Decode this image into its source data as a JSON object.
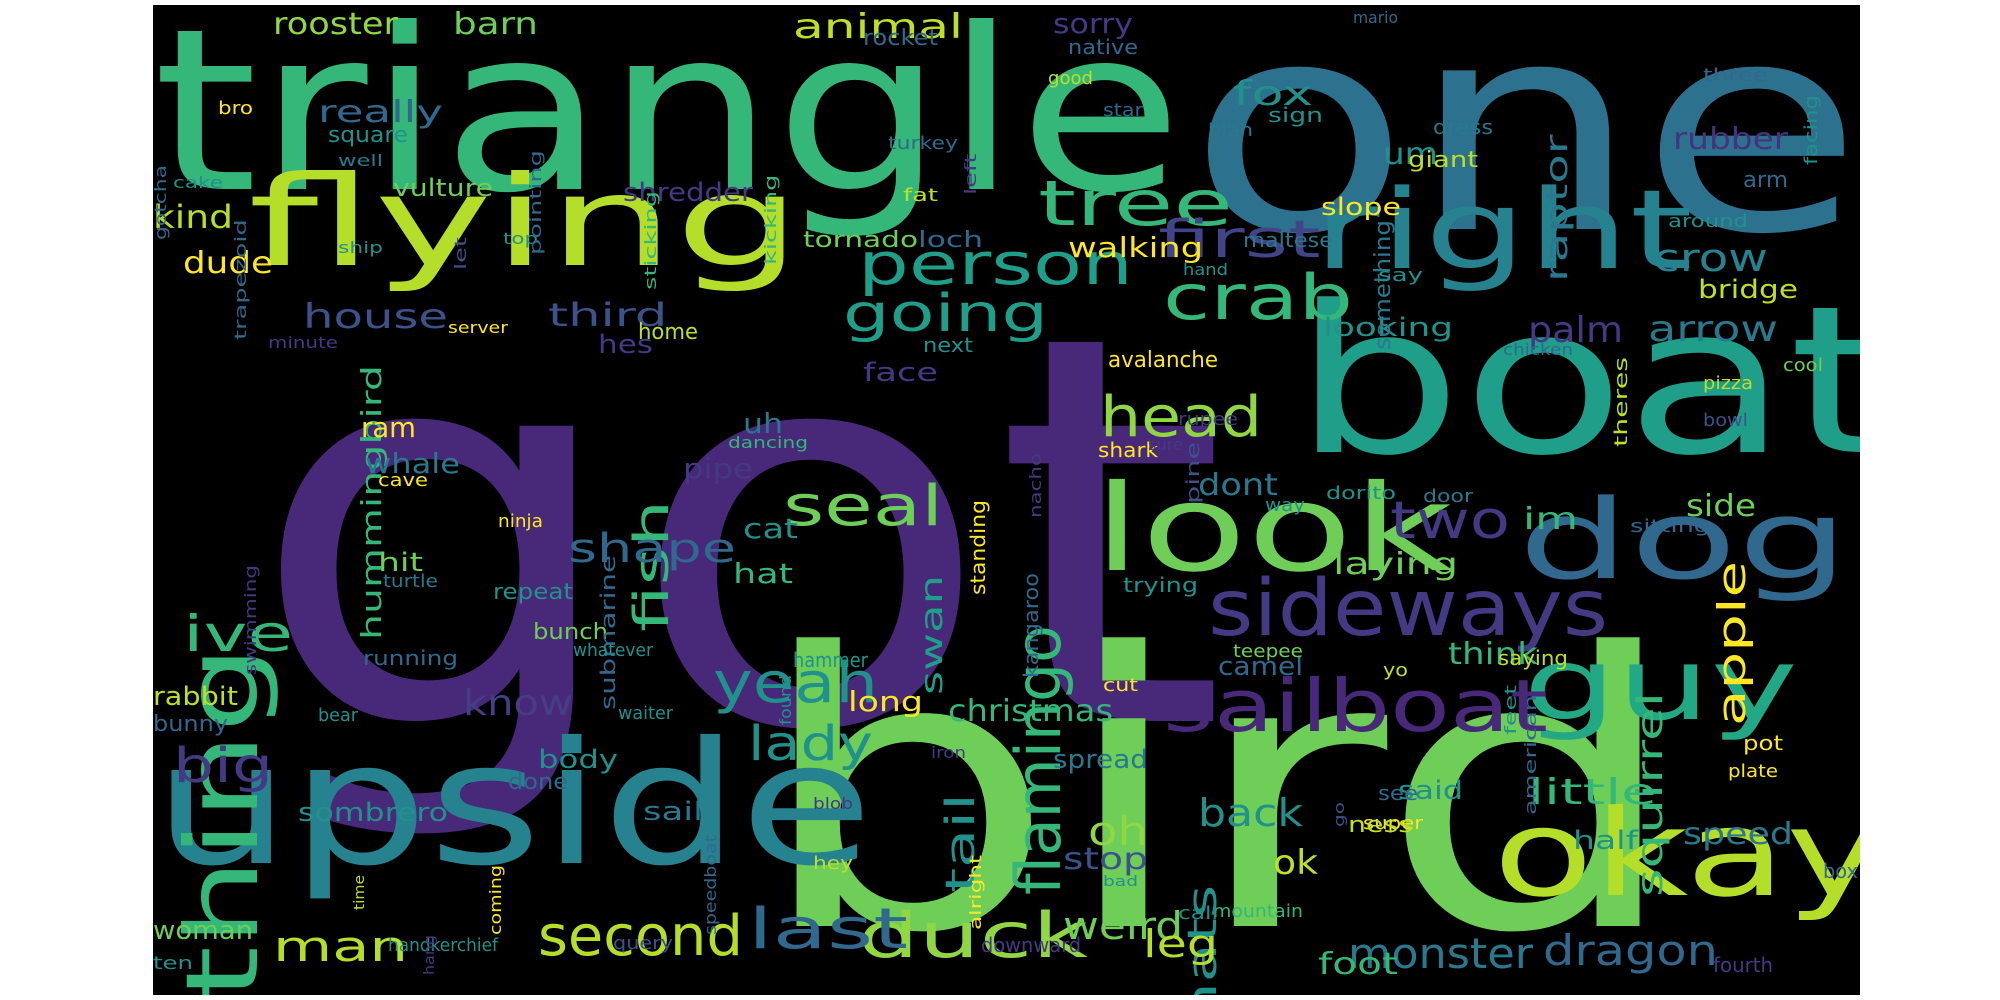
{
  "words": [
    {
      "t": "got",
      "c": "#482878"
    },
    {
      "t": "bird",
      "c": "#6ece58"
    },
    {
      "t": "one",
      "c": "#2c728e"
    },
    {
      "t": "triangle",
      "c": "#35b779"
    },
    {
      "t": "boat",
      "c": "#1f9e89"
    },
    {
      "t": "upside",
      "c": "#26828e"
    },
    {
      "t": "flying",
      "c": "#b5de2b"
    },
    {
      "t": "dog",
      "c": "#31688e"
    },
    {
      "t": "right",
      "c": "#26828e"
    },
    {
      "t": "look",
      "c": "#6ece58"
    },
    {
      "t": "okay",
      "c": "#b5de2b"
    },
    {
      "t": "guy",
      "c": "#22a884"
    },
    {
      "t": "thing",
      "c": "#35b779"
    },
    {
      "t": "sideways",
      "c": "#443983"
    },
    {
      "t": "sailboat",
      "c": "#482878"
    },
    {
      "t": "tree",
      "c": "#35b779"
    },
    {
      "t": "person",
      "c": "#1f9e89"
    },
    {
      "t": "crab",
      "c": "#35b779"
    },
    {
      "t": "flamingo",
      "c": "#35b779"
    },
    {
      "t": "duck",
      "c": "#90d743"
    },
    {
      "t": "head",
      "c": "#90d743"
    },
    {
      "t": "seal",
      "c": "#6ece58"
    },
    {
      "t": "yeah",
      "c": "#21918c"
    },
    {
      "t": "second",
      "c": "#b5de2b"
    },
    {
      "t": "last",
      "c": "#31688e"
    },
    {
      "t": "going",
      "c": "#1f9e89"
    },
    {
      "t": "two",
      "c": "#443983"
    },
    {
      "t": "first",
      "c": "#414487"
    },
    {
      "t": "fish",
      "c": "#35b779"
    },
    {
      "t": "shape",
      "c": "#31688e"
    },
    {
      "t": "ive",
      "c": "#35b779"
    },
    {
      "t": "lady",
      "c": "#21918c"
    },
    {
      "t": "big",
      "c": "#443983"
    },
    {
      "t": "man",
      "c": "#b5de2b"
    },
    {
      "t": "monster",
      "c": "#2a788e"
    },
    {
      "t": "dragon",
      "c": "#31688e"
    },
    {
      "t": "thats",
      "c": "#21918c"
    },
    {
      "t": "weird",
      "c": "#6ece58"
    },
    {
      "t": "tail",
      "c": "#21918c"
    },
    {
      "t": "back",
      "c": "#21918c"
    },
    {
      "t": "squirrel",
      "c": "#35b779"
    },
    {
      "t": "apple",
      "c": "#fde725"
    },
    {
      "t": "crow",
      "c": "#26828e"
    },
    {
      "t": "arrow",
      "c": "#2a788e"
    },
    {
      "t": "palm",
      "c": "#443983"
    },
    {
      "t": "little",
      "c": "#35b779"
    },
    {
      "t": "oh",
      "c": "#90d743"
    },
    {
      "t": "leg",
      "c": "#b5de2b"
    },
    {
      "t": "animal",
      "c": "#bddf26"
    },
    {
      "t": "house",
      "c": "#3b528b"
    },
    {
      "t": "third",
      "c": "#3b528b"
    },
    {
      "t": "know",
      "c": "#433e85"
    },
    {
      "t": "hummingbird",
      "c": "#35b779"
    },
    {
      "t": "ok",
      "c": "#bddf26"
    },
    {
      "t": "raptor",
      "c": "#2a788e"
    },
    {
      "t": "rubber",
      "c": "#46327e"
    },
    {
      "t": "fox",
      "c": "#21918c"
    },
    {
      "t": "um",
      "c": "#21918c"
    },
    {
      "t": "im",
      "c": "#35b779"
    },
    {
      "t": "laying",
      "c": "#6ece58"
    },
    {
      "t": "think",
      "c": "#35b779"
    },
    {
      "t": "speed",
      "c": "#2a788e"
    },
    {
      "t": "side",
      "c": "#6ece58"
    },
    {
      "t": "dont",
      "c": "#2a788e"
    },
    {
      "t": "stop",
      "c": "#3b528b"
    },
    {
      "t": "foot",
      "c": "#35b779"
    },
    {
      "t": "christmas",
      "c": "#35b779"
    },
    {
      "t": "swan",
      "c": "#1f9e89"
    },
    {
      "t": "kind",
      "c": "#b5de2b"
    },
    {
      "t": "rooster",
      "c": "#90d743"
    },
    {
      "t": "barn",
      "c": "#6ece58"
    },
    {
      "t": "sorry",
      "c": "#443983"
    },
    {
      "t": "really",
      "c": "#31688e"
    },
    {
      "t": "dude",
      "c": "#fde725"
    },
    {
      "t": "walking",
      "c": "#fde725"
    },
    {
      "t": "ram",
      "c": "#fde725"
    },
    {
      "t": "whale",
      "c": "#2a788e"
    },
    {
      "t": "uh",
      "c": "#2a788e"
    },
    {
      "t": "pipe",
      "c": "#443983"
    },
    {
      "t": "cat",
      "c": "#21918c"
    },
    {
      "t": "hat",
      "c": "#35b779"
    },
    {
      "t": "hit",
      "c": "#6ece58"
    },
    {
      "t": "hes",
      "c": "#443983"
    },
    {
      "t": "face",
      "c": "#443983"
    },
    {
      "t": "long",
      "c": "#fde725"
    },
    {
      "t": "sombrero",
      "c": "#21918c"
    },
    {
      "t": "body",
      "c": "#21918c"
    },
    {
      "t": "rabbit",
      "c": "#bddf26"
    },
    {
      "t": "said",
      "c": "#21918c"
    },
    {
      "t": "half",
      "c": "#21918c"
    },
    {
      "t": "woman",
      "c": "#6ece58"
    },
    {
      "t": "sail",
      "c": "#2a788e"
    },
    {
      "t": "spread",
      "c": "#2a788e"
    },
    {
      "t": "bridge",
      "c": "#bddf26"
    },
    {
      "t": "looking",
      "c": "#21918c"
    },
    {
      "t": "camel",
      "c": "#31688e"
    },
    {
      "t": "something",
      "c": "#2a788e"
    },
    {
      "t": "giant",
      "c": "#bddf26"
    },
    {
      "t": "shredder",
      "c": "#443983"
    },
    {
      "t": "vulture",
      "c": "#6ece58"
    },
    {
      "t": "square",
      "c": "#21918c"
    },
    {
      "t": "tornado",
      "c": "#6ece58"
    },
    {
      "t": "loch",
      "c": "#31688e"
    },
    {
      "t": "slope",
      "c": "#fde725"
    },
    {
      "t": "maltese",
      "c": "#2a788e"
    },
    {
      "t": "dress",
      "c": "#2a788e"
    },
    {
      "t": "sign",
      "c": "#21918c"
    },
    {
      "t": "arm",
      "c": "#31688e"
    },
    {
      "t": "avalanche",
      "c": "#fde725"
    },
    {
      "t": "home",
      "c": "#bddf26"
    },
    {
      "t": "next",
      "c": "#21918c"
    },
    {
      "t": "shark",
      "c": "#fde725"
    },
    {
      "t": "standing",
      "c": "#fde725"
    },
    {
      "t": "kangaroo",
      "c": "#31688e"
    },
    {
      "t": "trying",
      "c": "#21918c"
    },
    {
      "t": "repeat",
      "c": "#21918c"
    },
    {
      "t": "bunch",
      "c": "#6ece58"
    },
    {
      "t": "running",
      "c": "#31688e"
    },
    {
      "t": "hammer",
      "c": "#21918c"
    },
    {
      "t": "submarine",
      "c": "#31688e"
    },
    {
      "t": "cave",
      "c": "#fde725"
    },
    {
      "t": "turtle",
      "c": "#2a788e"
    },
    {
      "t": "ninja",
      "c": "#fde725"
    },
    {
      "t": "bunny",
      "c": "#31688e"
    },
    {
      "t": "bear",
      "c": "#21918c"
    },
    {
      "t": "done",
      "c": "#31688e"
    },
    {
      "t": "waiter",
      "c": "#21918c"
    },
    {
      "t": "whatever",
      "c": "#21918c"
    },
    {
      "t": "handkerchief",
      "c": "#21918c"
    },
    {
      "t": "query",
      "c": "#3b528b"
    },
    {
      "t": "downward",
      "c": "#443983"
    },
    {
      "t": "ten",
      "c": "#21918c"
    },
    {
      "t": "mountain",
      "c": "#35b779"
    },
    {
      "t": "call",
      "c": "#21918c"
    },
    {
      "t": "super",
      "c": "#fde725"
    },
    {
      "t": "ness",
      "c": "#bddf26"
    },
    {
      "t": "box",
      "c": "#31688e"
    },
    {
      "t": "fourth",
      "c": "#443983"
    },
    {
      "t": "pot",
      "c": "#fde725"
    },
    {
      "t": "plate",
      "c": "#fde725"
    },
    {
      "t": "saying",
      "c": "#bddf26"
    },
    {
      "t": "yo",
      "c": "#bddf26"
    },
    {
      "t": "see",
      "c": "#31688e"
    },
    {
      "t": "cut",
      "c": "#fde725"
    },
    {
      "t": "teepee",
      "c": "#6ece58"
    },
    {
      "t": "rocket",
      "c": "#31688e"
    },
    {
      "t": "native",
      "c": "#31688e"
    },
    {
      "t": "good",
      "c": "#bddf26"
    },
    {
      "t": "star",
      "c": "#31688e"
    },
    {
      "t": "blah",
      "c": "#2a788e"
    },
    {
      "t": "mario",
      "c": "#31688e"
    },
    {
      "t": "three",
      "c": "#31688e"
    },
    {
      "t": "facing",
      "c": "#21918c"
    },
    {
      "t": "around",
      "c": "#21918c"
    },
    {
      "t": "hand",
      "c": "#21918c"
    },
    {
      "t": "say",
      "c": "#21918c"
    },
    {
      "t": "chicken",
      "c": "#31688e"
    },
    {
      "t": "cool",
      "c": "#6ece58"
    },
    {
      "t": "pizza",
      "c": "#bddf26"
    },
    {
      "t": "bowl",
      "c": "#3b528b"
    },
    {
      "t": "theres",
      "c": "#bddf26"
    },
    {
      "t": "sitting",
      "c": "#31688e"
    },
    {
      "t": "door",
      "c": "#2a788e"
    },
    {
      "t": "dorito",
      "c": "#21918c"
    },
    {
      "t": "way",
      "c": "#21918c"
    },
    {
      "t": "pine",
      "c": "#3b528b"
    },
    {
      "t": "rupee",
      "c": "#443983"
    },
    {
      "t": "sure",
      "c": "#443983"
    },
    {
      "t": "nacho",
      "c": "#443983"
    },
    {
      "t": "dancing",
      "c": "#35b779"
    },
    {
      "t": "fat",
      "c": "#bddf26"
    },
    {
      "t": "top",
      "c": "#21918c"
    },
    {
      "t": "let",
      "c": "#3b528b"
    },
    {
      "t": "ship",
      "c": "#21918c"
    },
    {
      "t": "server",
      "c": "#fde725"
    },
    {
      "t": "minute",
      "c": "#443983"
    },
    {
      "t": "cake",
      "c": "#21918c"
    },
    {
      "t": "well",
      "c": "#2a788e"
    },
    {
      "t": "trapezoid",
      "c": "#31688e"
    },
    {
      "t": "pointing",
      "c": "#31688e"
    },
    {
      "t": "sticking",
      "c": "#35b779"
    },
    {
      "t": "kicking",
      "c": "#35b779"
    },
    {
      "t": "turkey",
      "c": "#31688e"
    },
    {
      "t": "left",
      "c": "#443983"
    },
    {
      "t": "gotcha",
      "c": "#31688e"
    },
    {
      "t": "bro",
      "c": "#fde725"
    },
    {
      "t": "swimming",
      "c": "#443983"
    },
    {
      "t": "time",
      "c": "#bddf26"
    },
    {
      "t": "hang",
      "c": "#443983"
    },
    {
      "t": "coming",
      "c": "#fde725"
    },
    {
      "t": "speedboat",
      "c": "#31688e"
    },
    {
      "t": "found",
      "c": "#21918c"
    },
    {
      "t": "blob",
      "c": "#443983"
    },
    {
      "t": "hey",
      "c": "#bddf26"
    },
    {
      "t": "iron",
      "c": "#443983"
    },
    {
      "t": "alright",
      "c": "#fde725"
    },
    {
      "t": "bad",
      "c": "#21918c"
    },
    {
      "t": "feet",
      "c": "#21918c"
    },
    {
      "t": "american",
      "c": "#31688e"
    },
    {
      "t": "go",
      "c": "#3b528b"
    }
  ]
}
